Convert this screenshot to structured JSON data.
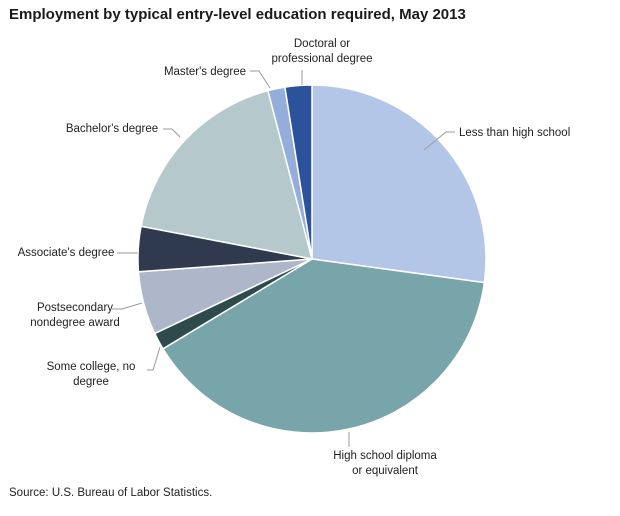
{
  "chart_data": {
    "type": "pie",
    "title": "Employment by typical entry-level education required, May 2013",
    "source": "Source: U.S. Bureau of Labor Statistics.",
    "start_angle_deg": 0,
    "direction": "clockwise",
    "slices": [
      {
        "label": "Less than high school",
        "label_lines": [
          "Less than high school"
        ],
        "value": 27.3,
        "color": "#b4c6e7"
      },
      {
        "label": "High school diploma or equivalent",
        "label_lines": [
          "High school diploma",
          "or equivalent"
        ],
        "value": 39.4,
        "color": "#78a5a9"
      },
      {
        "label": "Some college, no degree",
        "label_lines": [
          "Some college, no",
          "degree"
        ],
        "value": 1.6,
        "color": "#2e4a4d"
      },
      {
        "label": "Postsecondary nondegree award",
        "label_lines": [
          "Postsecondary",
          "nondegree  award"
        ],
        "value": 5.9,
        "color": "#adb7c9"
      },
      {
        "label": "Associate's degree",
        "label_lines": [
          "Associate's degree"
        ],
        "value": 4.2,
        "color": "#2f3a4e"
      },
      {
        "label": "Bachelor's degree",
        "label_lines": [
          "Bachelor's degree"
        ],
        "value": 18.0,
        "color": "#b5c9cc"
      },
      {
        "label": "Master's degree",
        "label_lines": [
          "Master's degree"
        ],
        "value": 1.6,
        "color": "#94addb"
      },
      {
        "label": "Doctoral or professional degree",
        "label_lines": [
          "Doctoral or",
          "professional degree"
        ],
        "value": 2.5,
        "color": "#2c529b"
      }
    ]
  }
}
